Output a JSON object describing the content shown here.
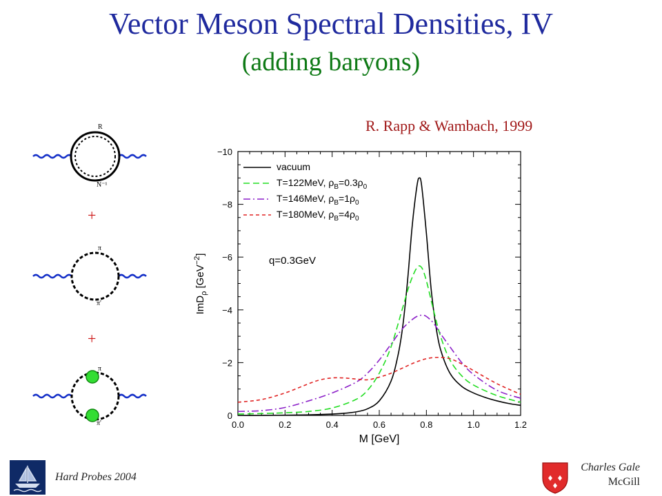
{
  "slide": {
    "title": "Vector Meson Spectral Densities, IV",
    "subtitle": "(adding baryons)",
    "credit": "R. Rapp & Wambach, 1999",
    "footer_left": "Hard Probes 2004",
    "footer_right_name": "Charles Gale",
    "footer_right_affil": "McGill"
  },
  "diagrams": {
    "plus": "+",
    "labels": [
      "R",
      "N⁻¹",
      "π",
      "π'",
      "π",
      "π'"
    ]
  },
  "chart_data": {
    "type": "line",
    "xlabel": "M [GeV]",
    "ylabel": "ImD_ρ [GeV⁻²]",
    "xlim": [
      0.0,
      1.2
    ],
    "ylim": [
      0,
      -10
    ],
    "x_ticks": [
      "0.0",
      "0.2",
      "0.4",
      "0.6",
      "0.8",
      "1.0",
      "1.2"
    ],
    "y_ticks": [
      "0",
      "−2",
      "−4",
      "−6",
      "−8",
      "−10"
    ],
    "annotation": "q=0.3GeV",
    "legend_position": "top-left",
    "series": [
      {
        "name": "vacuum",
        "legend_main": "vacuum",
        "legend_sub1": "",
        "legend_sub2": "",
        "color": "#000000",
        "dash": "",
        "x": [
          0.0,
          0.1,
          0.2,
          0.3,
          0.4,
          0.45,
          0.5,
          0.55,
          0.6,
          0.65,
          0.68,
          0.7,
          0.72,
          0.74,
          0.76,
          0.77,
          0.78,
          0.8,
          0.82,
          0.84,
          0.86,
          0.9,
          0.95,
          1.0,
          1.05,
          1.1,
          1.15,
          1.2
        ],
        "y": [
          0,
          0,
          -0.01,
          -0.02,
          -0.05,
          -0.08,
          -0.13,
          -0.25,
          -0.55,
          -1.3,
          -2.3,
          -3.4,
          -5.1,
          -7.2,
          -8.7,
          -9.0,
          -8.7,
          -6.9,
          -4.8,
          -3.4,
          -2.5,
          -1.6,
          -1.1,
          -0.85,
          -0.68,
          -0.55,
          -0.45,
          -0.38
        ]
      },
      {
        "name": "T=122MeV, ρB=0.3ρ0",
        "legend_main": "T=122MeV, ρ",
        "legend_sub1": "B",
        "legend_sub2": "0",
        "legend_mid": "=0.3ρ",
        "color": "#22dd22",
        "dash": "9,5",
        "x": [
          0.0,
          0.1,
          0.2,
          0.3,
          0.4,
          0.5,
          0.55,
          0.6,
          0.65,
          0.7,
          0.73,
          0.76,
          0.78,
          0.8,
          0.83,
          0.86,
          0.9,
          0.95,
          1.0,
          1.1,
          1.2
        ],
        "y": [
          -0.05,
          -0.07,
          -0.1,
          -0.15,
          -0.28,
          -0.6,
          -0.95,
          -1.6,
          -2.6,
          -4.1,
          -5.0,
          -5.6,
          -5.6,
          -5.1,
          -4.0,
          -3.0,
          -2.1,
          -1.5,
          -1.15,
          -0.75,
          -0.5
        ]
      },
      {
        "name": "T=146MeV, ρB=1ρ0",
        "legend_main": "T=146MeV, ρ",
        "legend_sub1": "B",
        "legend_sub2": "0",
        "legend_mid": "=1ρ",
        "color": "#8b1fc8",
        "dash": "10,4,2,4",
        "x": [
          0.0,
          0.1,
          0.2,
          0.3,
          0.4,
          0.5,
          0.55,
          0.6,
          0.65,
          0.7,
          0.75,
          0.78,
          0.8,
          0.83,
          0.86,
          0.9,
          0.95,
          1.0,
          1.1,
          1.2
        ],
        "y": [
          -0.15,
          -0.18,
          -0.3,
          -0.55,
          -0.85,
          -1.25,
          -1.6,
          -2.1,
          -2.7,
          -3.3,
          -3.7,
          -3.8,
          -3.75,
          -3.5,
          -3.1,
          -2.6,
          -2.0,
          -1.55,
          -0.95,
          -0.65
        ]
      },
      {
        "name": "T=180MeV, ρB=4ρ0",
        "legend_main": "T=180MeV, ρ",
        "legend_sub1": "B",
        "legend_sub2": "0",
        "legend_mid": "=4ρ",
        "color": "#e02222",
        "dash": "5,4",
        "x": [
          0.0,
          0.1,
          0.2,
          0.3,
          0.35,
          0.4,
          0.45,
          0.5,
          0.55,
          0.6,
          0.65,
          0.7,
          0.75,
          0.8,
          0.85,
          0.9,
          0.95,
          1.0,
          1.1,
          1.2
        ],
        "y": [
          -0.5,
          -0.6,
          -0.85,
          -1.2,
          -1.35,
          -1.42,
          -1.42,
          -1.38,
          -1.35,
          -1.45,
          -1.6,
          -1.8,
          -2.0,
          -2.15,
          -2.2,
          -2.15,
          -1.95,
          -1.7,
          -1.2,
          -0.8
        ]
      }
    ]
  }
}
